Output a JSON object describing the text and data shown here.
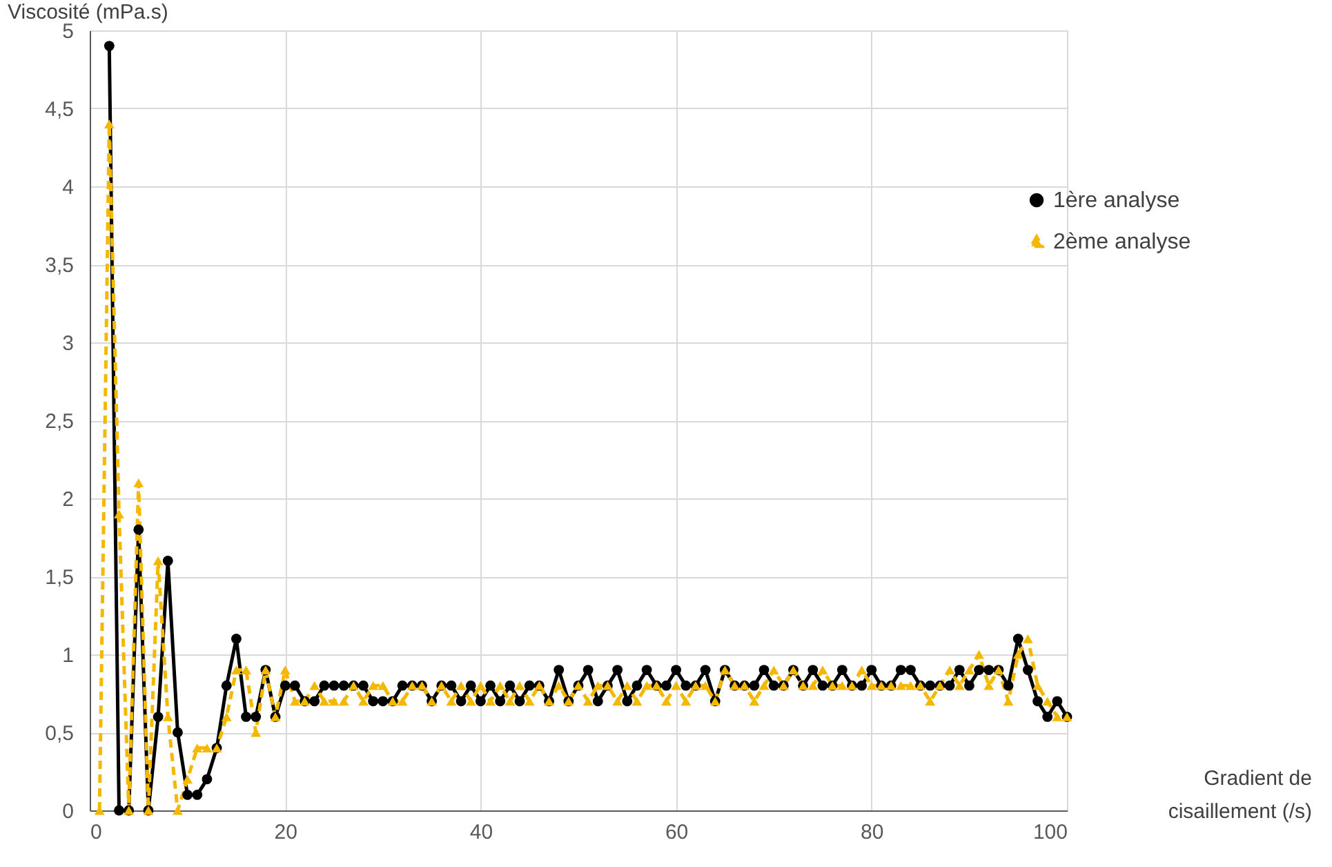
{
  "chart_data": {
    "type": "line",
    "xlabel": "Gradient de cisaillement (/s)",
    "ylabel": "Viscosité (mPa.s)",
    "x": [
      1,
      2,
      3,
      4,
      5,
      6,
      7,
      8,
      9,
      10,
      11,
      12,
      13,
      14,
      15,
      16,
      17,
      18,
      19,
      20,
      21,
      22,
      23,
      24,
      25,
      26,
      27,
      28,
      29,
      30,
      31,
      32,
      33,
      34,
      35,
      36,
      37,
      38,
      39,
      40,
      41,
      42,
      43,
      44,
      45,
      46,
      47,
      48,
      49,
      50,
      51,
      52,
      53,
      54,
      55,
      56,
      57,
      58,
      59,
      60,
      61,
      62,
      63,
      64,
      65,
      66,
      67,
      68,
      69,
      70,
      71,
      72,
      73,
      74,
      75,
      76,
      77,
      78,
      79,
      80,
      81,
      82,
      83,
      84,
      85,
      86,
      87,
      88,
      89,
      90,
      91,
      92,
      93,
      94,
      95,
      96,
      97,
      98,
      99,
      100
    ],
    "series": [
      {
        "name": "1ère analyse",
        "color": "#000000",
        "marker": "circle",
        "line_style": "solid",
        "values": [
          null,
          4.9,
          0,
          0,
          1.8,
          0,
          0.6,
          1.6,
          0.5,
          0.1,
          0.1,
          0.2,
          0.4,
          0.8,
          1.1,
          0.6,
          0.6,
          0.9,
          0.6,
          0.8,
          0.8,
          0.7,
          0.7,
          0.8,
          0.8,
          0.8,
          0.8,
          0.8,
          0.7,
          0.7,
          0.7,
          0.8,
          0.8,
          0.8,
          0.7,
          0.8,
          0.8,
          0.7,
          0.8,
          0.7,
          0.8,
          0.7,
          0.8,
          0.7,
          0.8,
          0.8,
          0.7,
          0.9,
          0.7,
          0.8,
          0.9,
          0.7,
          0.8,
          0.9,
          0.7,
          0.8,
          0.9,
          0.8,
          0.8,
          0.9,
          0.8,
          0.8,
          0.9,
          0.7,
          0.9,
          0.8,
          0.8,
          0.8,
          0.9,
          0.8,
          0.8,
          0.9,
          0.8,
          0.9,
          0.8,
          0.8,
          0.9,
          0.8,
          0.8,
          0.9,
          0.8,
          0.8,
          0.9,
          0.9,
          0.8,
          0.8,
          0.8,
          0.8,
          0.9,
          0.8,
          0.9,
          0.9,
          0.9,
          0.8,
          1.1,
          0.9,
          0.7,
          0.6,
          0.7,
          0.6
        ]
      },
      {
        "name": "2ème analyse",
        "color": "#f5b800",
        "marker": "triangle",
        "line_style": "dashed",
        "values": [
          0,
          4.4,
          1.9,
          0,
          2.1,
          0,
          1.6,
          0.6,
          0,
          0.2,
          0.4,
          0.4,
          0.4,
          0.6,
          0.9,
          0.9,
          0.5,
          0.9,
          0.6,
          0.9,
          0.7,
          0.7,
          0.8,
          0.7,
          0.7,
          0.7,
          0.8,
          0.7,
          0.8,
          0.8,
          0.7,
          0.7,
          0.8,
          0.8,
          0.7,
          0.8,
          0.7,
          0.8,
          0.7,
          0.8,
          0.7,
          0.8,
          0.7,
          0.8,
          0.7,
          0.8,
          0.7,
          0.8,
          0.7,
          0.8,
          0.7,
          0.8,
          0.8,
          0.7,
          0.8,
          0.7,
          0.8,
          0.8,
          0.7,
          0.8,
          0.7,
          0.8,
          0.8,
          0.7,
          0.9,
          0.8,
          0.8,
          0.7,
          0.8,
          0.9,
          0.8,
          0.9,
          0.8,
          0.8,
          0.9,
          0.8,
          0.8,
          0.8,
          0.9,
          0.8,
          0.8,
          0.8,
          0.8,
          0.8,
          0.8,
          0.7,
          0.8,
          0.9,
          0.8,
          0.9,
          1.0,
          0.8,
          0.9,
          0.7,
          1.0,
          1.1,
          0.8,
          0.7,
          0.6,
          0.6
        ]
      }
    ],
    "xlim": [
      0,
      100
    ],
    "xticks": [
      0,
      20,
      40,
      60,
      80,
      100
    ],
    "ylim": [
      0,
      5
    ],
    "yticks": [
      0,
      {
        "value": 0.5,
        "label": "0,5"
      },
      1,
      {
        "value": 1.5,
        "label": "1,5"
      },
      2,
      {
        "value": 2.5,
        "label": "2,5"
      },
      3,
      {
        "value": 3.5,
        "label": "3,5"
      },
      4,
      {
        "value": 4.5,
        "label": "4,5"
      },
      5
    ],
    "grid": true,
    "legend": "right"
  }
}
